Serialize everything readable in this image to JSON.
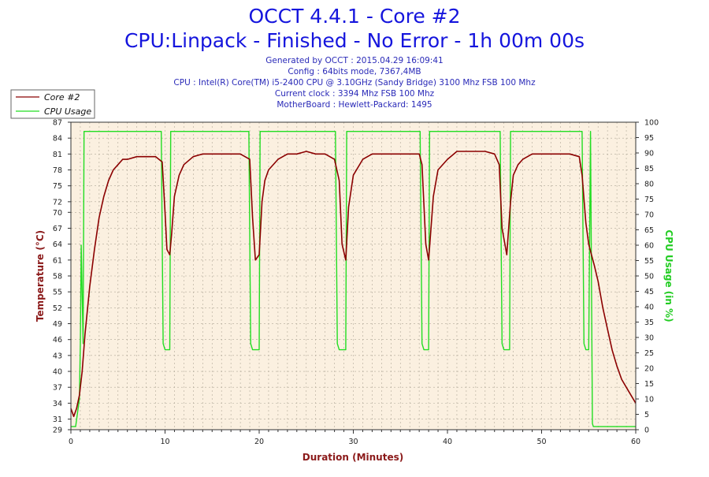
{
  "header": {
    "title": "OCCT 4.4.1 - Core #2",
    "subtitle": "CPU:Linpack - Finished - No Error - 1h 00m 00s",
    "info": [
      "Generated by OCCT : 2015.04.29 16:09:41",
      "Config : 64bits mode, 7367,4MB",
      "CPU : Intel(R) Core(TM) i5-2400 CPU @ 3.10GHz (Sandy Bridge) 3100 Mhz FSB 100 Mhz",
      "Current clock : 3394 Mhz FSB 100 Mhz",
      "MotherBoard : Hewlett-Packard: 1495"
    ]
  },
  "colors": {
    "temperature": "#8b0000",
    "cpu_usage": "#22dd22",
    "plot_background": "#fbf0e0",
    "grid": "#b0a898",
    "title": "#1515dd"
  },
  "chart_data": {
    "type": "line",
    "xlabel": "Duration (Minutes)",
    "ylabel": "Temperature (°C)",
    "ylabel_right": "CPU Usage (in %)",
    "xlim": [
      0,
      60
    ],
    "ylim": [
      29,
      87
    ],
    "ylim_right": [
      0,
      100
    ],
    "x_ticks": [
      0,
      10,
      20,
      30,
      40,
      50,
      60
    ],
    "y_ticks": [
      29,
      31,
      34,
      37,
      40,
      43,
      46,
      49,
      52,
      55,
      58,
      61,
      64,
      67,
      70,
      72,
      75,
      78,
      81,
      84,
      87
    ],
    "y_ticks_right": [
      0,
      5,
      10,
      15,
      20,
      25,
      30,
      35,
      40,
      45,
      50,
      55,
      60,
      65,
      70,
      75,
      80,
      85,
      90,
      95,
      100
    ],
    "grid": true,
    "legend_position": "top-left",
    "series": [
      {
        "name": "Core #2",
        "axis": "left",
        "x": [
          0,
          0.3,
          0.6,
          0.9,
          1.2,
          1.5,
          2.0,
          2.5,
          3.0,
          3.5,
          4.0,
          4.5,
          5.0,
          5.5,
          6.0,
          7.0,
          8.0,
          9.0,
          9.7,
          10.0,
          10.2,
          10.5,
          10.7,
          11.0,
          11.5,
          12.0,
          13.0,
          14.0,
          15.0,
          16.0,
          17.0,
          18.0,
          19.0,
          19.3,
          19.6,
          20.0,
          20.3,
          20.6,
          21.0,
          22.0,
          23.0,
          24.0,
          25.0,
          26.0,
          27.0,
          28.0,
          28.5,
          28.8,
          29.2,
          29.5,
          30.0,
          31.0,
          32.0,
          33.0,
          34.0,
          35.0,
          36.0,
          37.0,
          37.3,
          37.7,
          38.0,
          38.5,
          39.0,
          40.0,
          41.0,
          42.0,
          43.0,
          44.0,
          45.0,
          45.5,
          45.8,
          46.3,
          46.7,
          47.0,
          47.5,
          48.0,
          49.0,
          50.0,
          51.0,
          52.0,
          53.0,
          54.0,
          54.3,
          54.7,
          55.0,
          55.3,
          55.6,
          56.0,
          56.5,
          57.0,
          57.5,
          58.0,
          58.5,
          59.0,
          59.5,
          60.0
        ],
        "values": [
          33,
          31.5,
          33,
          35.5,
          40,
          47,
          56,
          63,
          69,
          73,
          76,
          78,
          79,
          80,
          80,
          80.5,
          80.5,
          80.5,
          79.5,
          70,
          63,
          62,
          66,
          73,
          77,
          79,
          80.5,
          81,
          81,
          81,
          81,
          81,
          80,
          69,
          61,
          62,
          72,
          76,
          78,
          80,
          81,
          81,
          81.5,
          81,
          81,
          80,
          76,
          64,
          61,
          71,
          77,
          80,
          81,
          81,
          81,
          81,
          81,
          81,
          79,
          64,
          61,
          73,
          78,
          80,
          81.5,
          81.5,
          81.5,
          81.5,
          81,
          79,
          67,
          62,
          72,
          77,
          79,
          80,
          81,
          81,
          81,
          81,
          81,
          80.5,
          77,
          68,
          64,
          62,
          60,
          57,
          52,
          48,
          44,
          41,
          38.5,
          37,
          35.5,
          34
        ]
      },
      {
        "name": "CPU Usage",
        "axis": "right",
        "x": [
          0,
          0.5,
          0.9,
          1.0,
          1.1,
          1.3,
          1.4,
          1.5,
          9.6,
          9.8,
          10.0,
          10.5,
          10.6,
          10.7,
          18.9,
          19.1,
          19.3,
          20.0,
          20.1,
          20.2,
          28.1,
          28.3,
          28.5,
          29.2,
          29.3,
          29.4,
          37.1,
          37.3,
          37.5,
          38.0,
          38.1,
          38.2,
          45.6,
          45.8,
          46.0,
          46.6,
          46.7,
          46.8,
          54.3,
          54.5,
          54.7,
          55.0,
          55.2,
          55.4,
          55.5,
          60.0
        ],
        "values": [
          1,
          1,
          10,
          28,
          60,
          28,
          97,
          97,
          97,
          28,
          26,
          26,
          97,
          97,
          97,
          28,
          26,
          26,
          97,
          97,
          97,
          28,
          26,
          26,
          97,
          97,
          97,
          28,
          26,
          26,
          97,
          97,
          97,
          28,
          26,
          26,
          97,
          97,
          97,
          28,
          26,
          26,
          97,
          2,
          1,
          1
        ]
      }
    ]
  }
}
